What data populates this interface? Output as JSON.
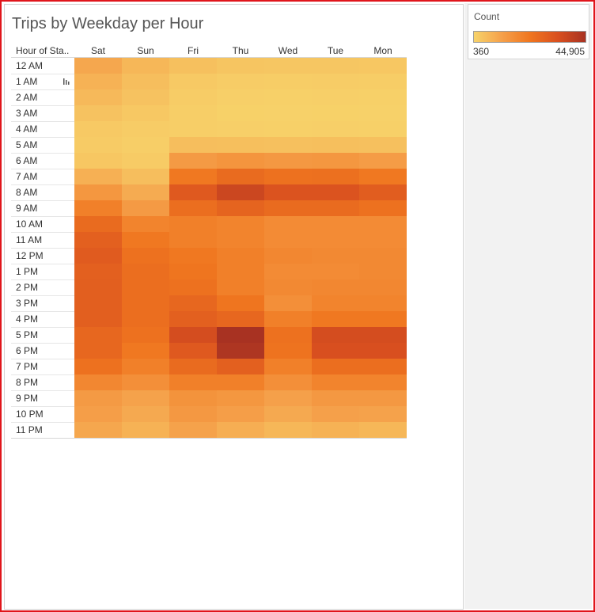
{
  "title": "Trips by Weekday per Hour",
  "row_header": "Hour of Sta..",
  "legend": {
    "title": "Count",
    "min_label": "360",
    "max_label": "44,905",
    "colors": [
      "#f7d36a",
      "#f5a04a",
      "#f0761f",
      "#d9501f",
      "#a83222"
    ]
  },
  "chart_data": {
    "type": "heatmap",
    "title": "Trips by Weekday per Hour",
    "xlabel": "",
    "ylabel": "Hour of Sta..",
    "x": [
      "Sat",
      "Sun",
      "Fri",
      "Thu",
      "Wed",
      "Tue",
      "Mon"
    ],
    "y": [
      "12 AM",
      "1 AM",
      "2 AM",
      "3 AM",
      "4 AM",
      "5 AM",
      "6 AM",
      "7 AM",
      "8 AM",
      "9 AM",
      "10 AM",
      "11 AM",
      "12 PM",
      "1 PM",
      "2 PM",
      "3 PM",
      "4 PM",
      "5 PM",
      "6 PM",
      "7 PM",
      "8 PM",
      "9 PM",
      "10 PM",
      "11 PM"
    ],
    "value_range": [
      360,
      44905
    ],
    "values": [
      [
        10000,
        6500,
        4500,
        3500,
        3200,
        3300,
        3000
      ],
      [
        7500,
        5000,
        2500,
        1800,
        1700,
        1800,
        1600
      ],
      [
        6000,
        4000,
        1800,
        1200,
        1100,
        1200,
        1100
      ],
      [
        4000,
        2800,
        1400,
        900,
        800,
        900,
        800
      ],
      [
        2500,
        1800,
        1500,
        1200,
        1100,
        1200,
        1100
      ],
      [
        2200,
        1500,
        5000,
        4800,
        4600,
        4800,
        4500
      ],
      [
        3000,
        2000,
        13000,
        14500,
        13500,
        14000,
        12500
      ],
      [
        8000,
        5000,
        22000,
        26000,
        24000,
        24500,
        22000
      ],
      [
        14000,
        9000,
        31000,
        37000,
        33000,
        33000,
        30000
      ],
      [
        20000,
        13000,
        25000,
        28000,
        26000,
        26000,
        24000
      ],
      [
        26000,
        19000,
        20000,
        19000,
        17000,
        17000,
        17000
      ],
      [
        29000,
        22000,
        20000,
        19000,
        17000,
        17000,
        17000
      ],
      [
        30500,
        24000,
        22000,
        20000,
        18000,
        17500,
        17500
      ],
      [
        29000,
        25000,
        23000,
        20000,
        17000,
        17000,
        17500
      ],
      [
        29500,
        25000,
        24000,
        20000,
        17500,
        18000,
        18000
      ],
      [
        29500,
        25000,
        27000,
        23000,
        16000,
        19000,
        19000
      ],
      [
        29500,
        25000,
        29000,
        27000,
        20000,
        22000,
        22000
      ],
      [
        27000,
        24000,
        35000,
        44905,
        24000,
        35000,
        35000
      ],
      [
        27000,
        22000,
        31000,
        43500,
        23500,
        34000,
        34000
      ],
      [
        24000,
        20000,
        26000,
        29000,
        20000,
        25000,
        25000
      ],
      [
        18000,
        16000,
        20000,
        20000,
        16000,
        19000,
        19000
      ],
      [
        13000,
        11000,
        15000,
        14000,
        11500,
        13500,
        13500
      ],
      [
        12000,
        9500,
        13500,
        12000,
        9500,
        11500,
        11000
      ],
      [
        10000,
        7500,
        11000,
        8500,
        6500,
        7500,
        6500
      ]
    ]
  }
}
